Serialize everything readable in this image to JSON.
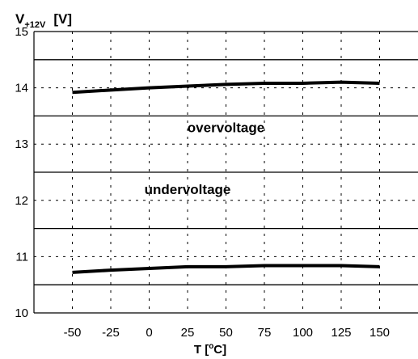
{
  "chart_data": {
    "type": "line",
    "ylabel": {
      "symbol": "V",
      "subscript": "+12V",
      "unit": "[V]"
    },
    "xlabel": {
      "base": "T [",
      "superscript": "o",
      "tail": "C]"
    },
    "xlim": [
      -75,
      175
    ],
    "ylim": [
      10,
      15
    ],
    "x_ticks": [
      -50,
      -25,
      0,
      25,
      50,
      75,
      100,
      125,
      150
    ],
    "y_ticks": [
      10,
      11,
      12,
      13,
      14,
      15
    ],
    "solid_gridlines_y": [
      10.5,
      11.5,
      12.5,
      13.5,
      14.5
    ],
    "grid": true,
    "annotations": [
      {
        "text": "overvoltage",
        "x": 50,
        "y": 13.3
      },
      {
        "text": "undervoltage",
        "x": 25,
        "y": 12.2
      }
    ],
    "series": [
      {
        "x": [
          -50,
          -25,
          0,
          25,
          50,
          75,
          100,
          125,
          150
        ],
        "y": [
          13.92,
          13.96,
          14.0,
          14.03,
          14.06,
          14.08,
          14.08,
          14.1,
          14.08
        ]
      },
      {
        "x": [
          -50,
          -25,
          0,
          25,
          50,
          75,
          100,
          125,
          150
        ],
        "y": [
          10.72,
          10.76,
          10.79,
          10.82,
          10.82,
          10.84,
          10.84,
          10.84,
          10.82
        ]
      }
    ]
  }
}
